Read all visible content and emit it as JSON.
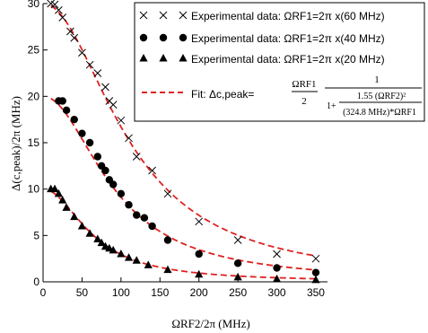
{
  "chart_data": {
    "type": "scatter",
    "xlabel": "ΩRF2/2π (MHz)",
    "ylabel": "Δ(c,peak)/2π (MHz)",
    "xlim": [
      0,
      365
    ],
    "ylim": [
      0,
      30
    ],
    "xticks": [
      "0",
      "50",
      "100",
      "150",
      "200",
      "250",
      "300",
      "350"
    ],
    "yticks": [
      "0",
      "5",
      "10",
      "15",
      "20",
      "25",
      "30"
    ],
    "legend_position": "top-right",
    "fit_color": "#e02020",
    "series": [
      {
        "name": "Experimental data: ΩRF1=2π x(60 MHz)",
        "marker": "x",
        "x": [
          10,
          15,
          20,
          25,
          35,
          40,
          50,
          60,
          70,
          80,
          85,
          90,
          100,
          110,
          120,
          140,
          160,
          200,
          250,
          300,
          350
        ],
        "y": [
          30.0,
          29.9,
          29.3,
          28.5,
          27.0,
          26.3,
          24.7,
          23.4,
          22.5,
          21.0,
          19.5,
          19.1,
          17.4,
          15.5,
          13.5,
          12.0,
          9.5,
          6.5,
          4.5,
          3.0,
          2.5
        ]
      },
      {
        "name": "Experimental data: ΩRF1=2π x(40 MHz)",
        "marker": "circle",
        "x": [
          20,
          25,
          30,
          40,
          50,
          60,
          70,
          75,
          80,
          85,
          90,
          100,
          110,
          120,
          130,
          140,
          160,
          200,
          250,
          300,
          350
        ],
        "y": [
          19.5,
          19.5,
          18.5,
          17.5,
          16.0,
          15.0,
          13.5,
          12.5,
          12.0,
          11.0,
          10.5,
          9.5,
          8.3,
          7.2,
          6.9,
          6.0,
          4.5,
          3.0,
          2.0,
          1.5,
          1.0
        ]
      },
      {
        "name": "Experimental data: ΩRF1=2π x(20 MHz)",
        "marker": "triangle",
        "x": [
          10,
          15,
          20,
          25,
          30,
          40,
          50,
          60,
          70,
          75,
          80,
          85,
          90,
          100,
          110,
          120,
          135,
          160,
          200,
          250,
          300,
          350
        ],
        "y": [
          10.0,
          10.0,
          9.5,
          8.8,
          8.0,
          7.0,
          6.0,
          5.2,
          4.6,
          4.2,
          3.8,
          3.6,
          3.4,
          3.0,
          2.6,
          2.3,
          1.8,
          1.3,
          0.8,
          0.5,
          0.3,
          0.2
        ]
      }
    ],
    "fit": {
      "label": "Fit: Δc,peak=",
      "formula_numerator_left": "ΩRF1",
      "formula_denominator_left": "2",
      "formula_numerator_right": "1",
      "formula_denominator_top": "1.55 (ΩRF2)²",
      "formula_denominator_bottom": "(324.8 MHz)*ΩRF1",
      "formula_one_plus": "1+",
      "coefficient": 1.55,
      "constant_MHz": 324.8,
      "omega_rf1_values": [
        60,
        40,
        20
      ]
    }
  }
}
